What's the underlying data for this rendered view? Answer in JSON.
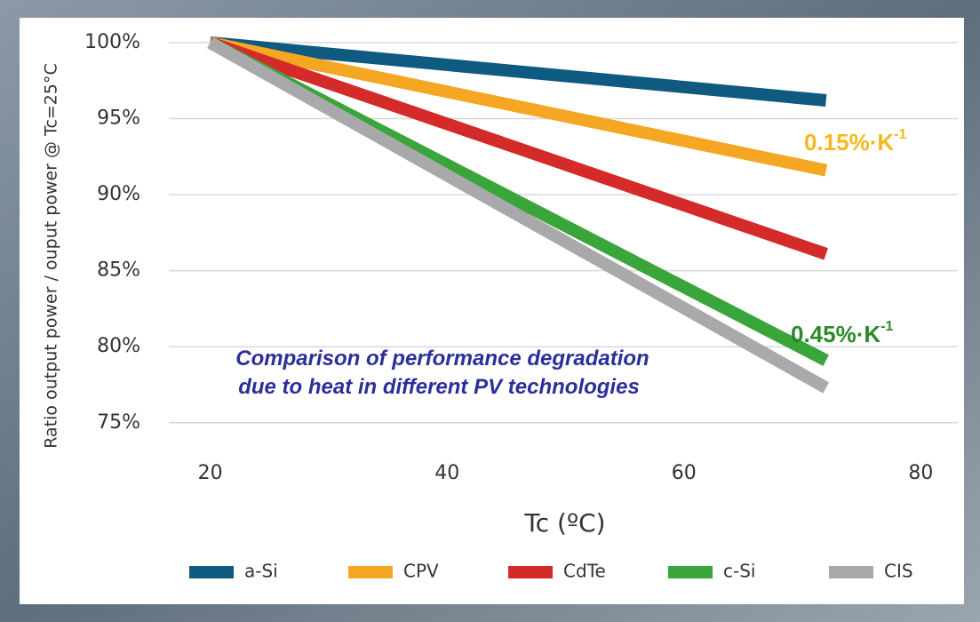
{
  "chart_data": {
    "type": "line",
    "y_label": "Ratio output power / ouput power @ Tc=25°C",
    "x_label": "Tc (ºC)",
    "x": [
      20,
      72
    ],
    "series": [
      {
        "name": "a-Si",
        "color": "#0f5a80",
        "values": [
          100,
          96.2
        ]
      },
      {
        "name": "CPV",
        "color": "#f5a623",
        "values": [
          100,
          91.6
        ]
      },
      {
        "name": "CdTe",
        "color": "#d42a2a",
        "values": [
          100,
          86.1
        ]
      },
      {
        "name": "c-Si",
        "color": "#3aa53a",
        "values": [
          100,
          79.1
        ]
      },
      {
        "name": "CIS",
        "color": "#a9a9ab",
        "values": [
          100,
          77.3
        ]
      }
    ],
    "xlim": [
      16.5,
      83.5
    ],
    "xticks": [
      20,
      40,
      60,
      80
    ],
    "ylim": [
      73,
      101.4
    ],
    "yticks": [
      {
        "value": 75,
        "label": "75%"
      },
      {
        "value": 80,
        "label": "80%"
      },
      {
        "value": 85,
        "label": "85%"
      },
      {
        "value": 90,
        "label": "90%"
      },
      {
        "value": 95,
        "label": "95%"
      },
      {
        "value": 100,
        "label": "100%"
      }
    ],
    "grid": true,
    "annotations": [
      {
        "text": "0.15%·K",
        "sup": "-1",
        "color": "#f5b820"
      },
      {
        "text": "0.45%·K",
        "sup": "-1",
        "color": "#2a8a2a"
      },
      {
        "text": "Comparison of performance degradation",
        "color": "#2b2f9a"
      },
      {
        "text": "due to heat in different PV technologies",
        "color": "#2b2f9a"
      }
    ]
  }
}
